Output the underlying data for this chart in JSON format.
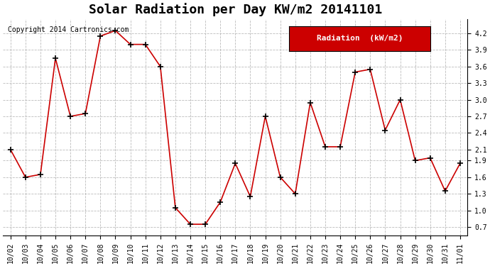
{
  "title": "Solar Radiation per Day KW/m2 20141101",
  "copyright": "Copyright 2014 Cartronics.com",
  "legend_label": "Radiation  (kW/m2)",
  "legend_bg": "#cc0000",
  "legend_text_color": "#ffffff",
  "line_color": "#cc0000",
  "marker_color": "#000000",
  "bg_color": "#ffffff",
  "grid_color": "#aaaaaa",
  "dates": [
    "10/02",
    "10/03",
    "10/04",
    "10/05",
    "10/06",
    "10/07",
    "10/08",
    "10/09",
    "10/10",
    "10/11",
    "10/12",
    "10/13",
    "10/14",
    "10/15",
    "10/16",
    "10/17",
    "10/18",
    "10/19",
    "10/20",
    "10/21",
    "10/22",
    "10/23",
    "10/24",
    "10/25",
    "10/26",
    "10/27",
    "10/28",
    "10/29",
    "10/30",
    "10/31",
    "11/01"
  ],
  "values": [
    2.1,
    1.6,
    1.65,
    3.75,
    2.7,
    2.75,
    4.15,
    4.25,
    4.0,
    4.0,
    3.6,
    1.05,
    0.75,
    0.75,
    1.15,
    1.85,
    1.25,
    2.7,
    1.6,
    1.3,
    2.95,
    2.15,
    2.15,
    3.5,
    3.55,
    2.45,
    3.0,
    1.9,
    1.95,
    1.35,
    1.85
  ],
  "ylim": [
    0.55,
    4.45
  ],
  "yticks": [
    0.7,
    1.0,
    1.3,
    1.6,
    1.9,
    2.1,
    2.4,
    2.7,
    3.0,
    3.3,
    3.6,
    3.9,
    4.2
  ],
  "title_fontsize": 13,
  "copyright_fontsize": 7,
  "tick_fontsize": 7,
  "legend_fontsize": 8
}
